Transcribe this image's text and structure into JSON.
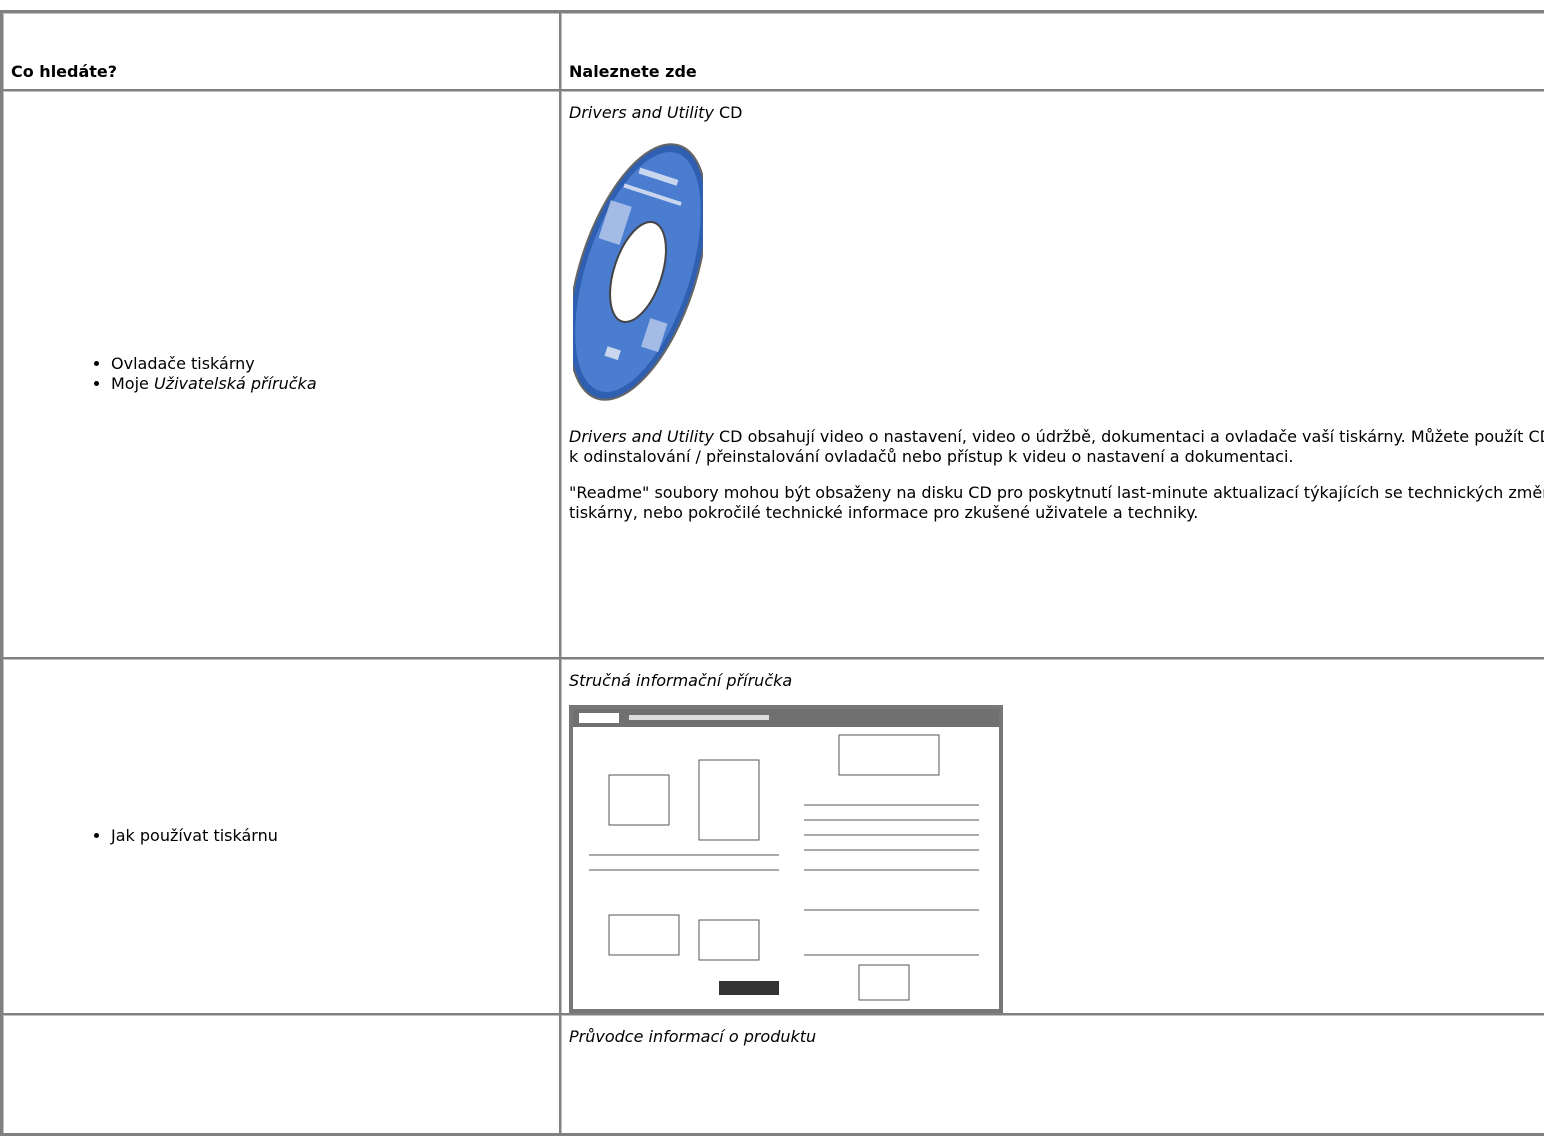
{
  "table": {
    "headers": [
      "Co hledáte?",
      "Naleznete zde"
    ],
    "rows": [
      {
        "items": [
          [
            "Ovladače tiskárny"
          ],
          [
            "Moje ",
            "Uživatelská příručka"
          ]
        ],
        "caption": [
          "Drivers and Utility",
          " CD"
        ],
        "paragraphs": [
          [
            "Drivers and Utility",
            " CD obsahují video o nastavení, video o údržbě, dokumentaci a ovladače vaší tiskárny. Můžete použít CD k odinstalování / přeinstalování ovladačů nebo přístup k videu o nastavení  a dokumentaci."
          ],
          [
            "\"Readme\" soubory mohou být obsaženy na disku CD pro poskytnutí last-minute aktualizací týkajících se technických změn tiskárny, nebo pokročilé technické informace pro zkušené uživatele a techniky."
          ]
        ]
      },
      {
        "items": [
          [
            "Jak používat tiskárnu"
          ]
        ],
        "caption": [
          "Stručná informační příručka"
        ],
        "paragraphs": []
      },
      {
        "items": [],
        "caption": [
          "Průvodce informací o produktu"
        ],
        "paragraphs": []
      }
    ]
  }
}
